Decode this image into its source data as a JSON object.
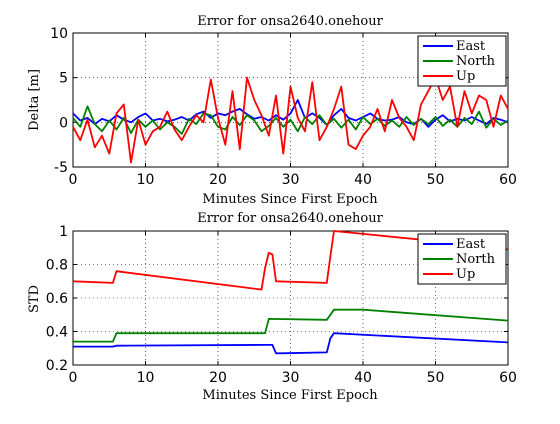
{
  "chart_data": [
    {
      "type": "line",
      "title": "Error for onsa2640.onehour",
      "xlabel": "Minutes Since First Epoch",
      "ylabel": "Delta [m]",
      "xlim": [
        0,
        60
      ],
      "ylim": [
        -5,
        10
      ],
      "xticks": [
        "0",
        "10",
        "20",
        "30",
        "40",
        "50",
        "60"
      ],
      "yticks": [
        "-5",
        "0",
        "5",
        "10"
      ],
      "grid": true,
      "legend_position": "top-right",
      "legend": [
        "East",
        "North",
        "Up"
      ],
      "series": [
        {
          "name": "East",
          "color": "#0000ff",
          "x": [
            0,
            1,
            2,
            3,
            4,
            5,
            6,
            7,
            8,
            9,
            10,
            11,
            12,
            13,
            14,
            15,
            16,
            17,
            18,
            19,
            20,
            21,
            22,
            23,
            24,
            25,
            26,
            27,
            28,
            29,
            30,
            31,
            32,
            33,
            34,
            35,
            36,
            37,
            38,
            39,
            40,
            41,
            42,
            43,
            44,
            45,
            46,
            47,
            48,
            49,
            50,
            51,
            52,
            53,
            54,
            55,
            56,
            57,
            58,
            59,
            60
          ],
          "y": [
            1.0,
            0.2,
            0.5,
            -0.2,
            0.4,
            0.1,
            0.8,
            0.3,
            0.0,
            0.6,
            1.0,
            0.2,
            0.4,
            0.1,
            0.3,
            0.6,
            0.2,
            0.9,
            1.2,
            0.5,
            1.0,
            0.8,
            1.2,
            1.5,
            0.9,
            0.4,
            0.6,
            0.2,
            0.8,
            0.3,
            1.0,
            2.5,
            0.5,
            1.0,
            0.5,
            -0.3,
            0.8,
            1.5,
            0.5,
            0.2,
            0.6,
            1.0,
            0.4,
            0.2,
            0.3,
            0.6,
            0.0,
            -0.2,
            0.4,
            -0.5,
            0.3,
            0.8,
            0.1,
            0.4,
            0.2,
            0.6,
            0.2,
            -0.2,
            0.5,
            0.3,
            0.0
          ]
        },
        {
          "name": "North",
          "color": "#008000",
          "x": [
            0,
            1,
            2,
            3,
            4,
            5,
            6,
            7,
            8,
            9,
            10,
            11,
            12,
            13,
            14,
            15,
            16,
            17,
            18,
            19,
            20,
            21,
            22,
            23,
            24,
            25,
            26,
            27,
            28,
            29,
            30,
            31,
            32,
            33,
            34,
            35,
            36,
            37,
            38,
            39,
            40,
            41,
            42,
            43,
            44,
            45,
            46,
            47,
            48,
            49,
            50,
            51,
            52,
            53,
            54,
            55,
            56,
            57,
            58,
            59,
            60
          ],
          "y": [
            0.5,
            -0.5,
            1.8,
            -0.2,
            -1.0,
            0.2,
            -0.8,
            0.5,
            -1.2,
            0.3,
            -0.5,
            0.2,
            -0.8,
            0.0,
            -0.5,
            -1.3,
            0.4,
            -0.2,
            1.0,
            0.8,
            -0.5,
            -0.8,
            0.6,
            -0.3,
            0.8,
            0.2,
            -1.0,
            -0.4,
            0.5,
            -0.5,
            0.3,
            -1.0,
            0.6,
            -0.2,
            0.8,
            -0.3,
            0.4,
            -0.6,
            0.3,
            -0.8,
            0.6,
            -0.2,
            0.4,
            -0.4,
            0.2,
            -0.5,
            0.6,
            -0.3,
            0.4,
            -0.2,
            0.6,
            -0.4,
            0.3,
            -0.5,
            0.5,
            -0.2,
            1.2,
            -0.6,
            0.4,
            -0.3,
            0.2
          ]
        },
        {
          "name": "Up",
          "color": "#ff0000",
          "x": [
            0,
            1,
            2,
            3,
            4,
            5,
            6,
            7,
            8,
            9,
            10,
            11,
            12,
            13,
            14,
            15,
            16,
            17,
            18,
            19,
            20,
            21,
            22,
            23,
            24,
            25,
            26,
            27,
            28,
            29,
            30,
            31,
            32,
            33,
            34,
            35,
            36,
            37,
            38,
            39,
            40,
            41,
            42,
            43,
            44,
            45,
            46,
            47,
            48,
            49,
            50,
            51,
            52,
            53,
            54,
            55,
            56,
            57,
            58,
            59,
            60
          ],
          "y": [
            -0.5,
            -2.0,
            0.3,
            -2.8,
            -1.5,
            -3.5,
            1.0,
            2.0,
            -4.5,
            0.3,
            -2.5,
            -1.0,
            -0.5,
            1.2,
            -0.8,
            -2.0,
            -0.5,
            0.8,
            0.0,
            4.8,
            0.5,
            -2.5,
            3.5,
            -3.0,
            5.0,
            2.5,
            0.8,
            -1.5,
            3.0,
            -3.5,
            4.0,
            0.5,
            -1.0,
            4.5,
            -2.0,
            -0.5,
            1.5,
            4.0,
            -2.5,
            -3.0,
            -1.5,
            -0.5,
            1.5,
            -1.0,
            2.5,
            0.5,
            -0.5,
            -2.0,
            2.0,
            3.5,
            5.0,
            2.5,
            4.0,
            -0.5,
            3.5,
            1.0,
            3.0,
            2.5,
            -0.5,
            3.0,
            1.5
          ]
        }
      ]
    },
    {
      "type": "line",
      "title": "Error for onsa2640.onehour",
      "xlabel": "Minutes Since First Epoch",
      "ylabel": "STD",
      "xlim": [
        0,
        60
      ],
      "ylim": [
        0.2,
        1
      ],
      "xticks": [
        "0",
        "10",
        "20",
        "30",
        "40",
        "50",
        "60"
      ],
      "yticks": [
        "0.2",
        "0.4",
        "0.6",
        "0.8",
        "1"
      ],
      "grid": true,
      "legend_position": "top-right",
      "legend": [
        "East",
        "North",
        "Up"
      ],
      "series": [
        {
          "name": "East",
          "color": "#0000ff",
          "x": [
            0,
            5.5,
            6,
            26.5,
            27.5,
            28,
            28.5,
            35,
            35.5,
            36,
            60
          ],
          "y": [
            0.31,
            0.31,
            0.315,
            0.32,
            0.32,
            0.27,
            0.27,
            0.275,
            0.36,
            0.39,
            0.335
          ]
        },
        {
          "name": "North",
          "color": "#008000",
          "x": [
            0,
            5.5,
            6,
            26.5,
            27,
            35,
            36,
            40,
            60
          ],
          "y": [
            0.34,
            0.34,
            0.39,
            0.39,
            0.475,
            0.47,
            0.53,
            0.53,
            0.465
          ]
        },
        {
          "name": "Up",
          "color": "#ff0000",
          "x": [
            0,
            5.5,
            6,
            26,
            26.5,
            27,
            27.5,
            28,
            35,
            35.5,
            36,
            50,
            60
          ],
          "y": [
            0.7,
            0.69,
            0.76,
            0.65,
            0.78,
            0.87,
            0.86,
            0.7,
            0.69,
            0.85,
            1.0,
            0.94,
            0.89
          ]
        }
      ]
    }
  ]
}
